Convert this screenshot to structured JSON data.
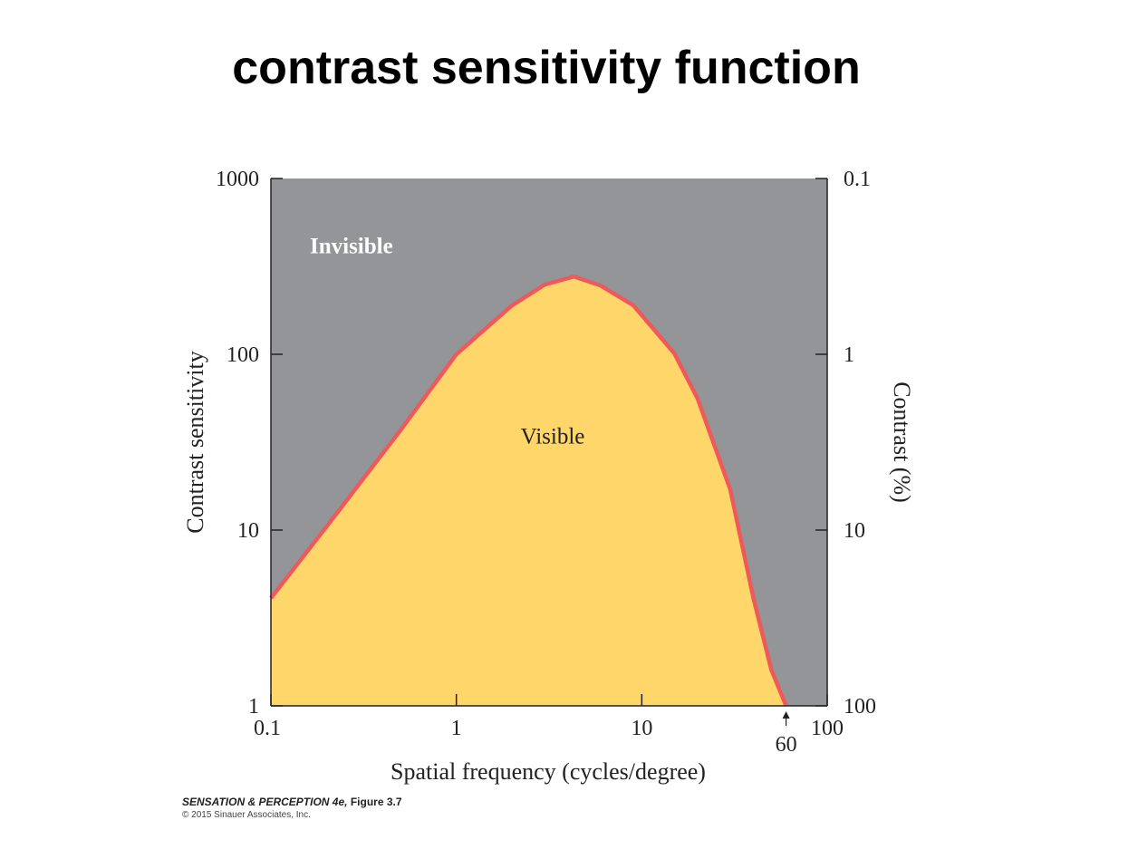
{
  "title": "contrast sensitivity function",
  "chart_data": {
    "type": "area",
    "x_scale": "log",
    "y_scale": "log",
    "xlabel": "Spatial frequency (cycles/degree)",
    "ylabel": "Contrast sensitivity",
    "y2label": "Contrast (%)",
    "xlim": [
      0.1,
      100
    ],
    "xticks": [
      0.1,
      1,
      10,
      100
    ],
    "ylim": [
      1,
      1000
    ],
    "yticks": [
      1,
      10,
      100,
      1000
    ],
    "y2lim": [
      100,
      0.1
    ],
    "y2ticks": [
      0.1,
      1,
      10,
      100
    ],
    "x_annotations": [
      60
    ],
    "region_labels": {
      "above": "Invisible",
      "below": "Visible"
    },
    "background_color": "#939598",
    "series": [
      {
        "color": "#fed66a",
        "line_color": "#ee5a5a",
        "x": [
          0.1,
          0.2,
          0.5,
          1,
          2,
          3,
          4.3,
          6,
          9,
          15,
          20,
          30,
          40,
          50,
          60
        ],
        "values": [
          4.1,
          10.5,
          37,
          100,
          190,
          249,
          277,
          246,
          190,
          101,
          56,
          17,
          4.1,
          1.6,
          1
        ]
      }
    ]
  },
  "footer": {
    "book": "SENSATION & PERCEPTION 4e,",
    "figure": "Figure 3.7",
    "copyright": "© 2015 Sinauer Associates, Inc."
  }
}
